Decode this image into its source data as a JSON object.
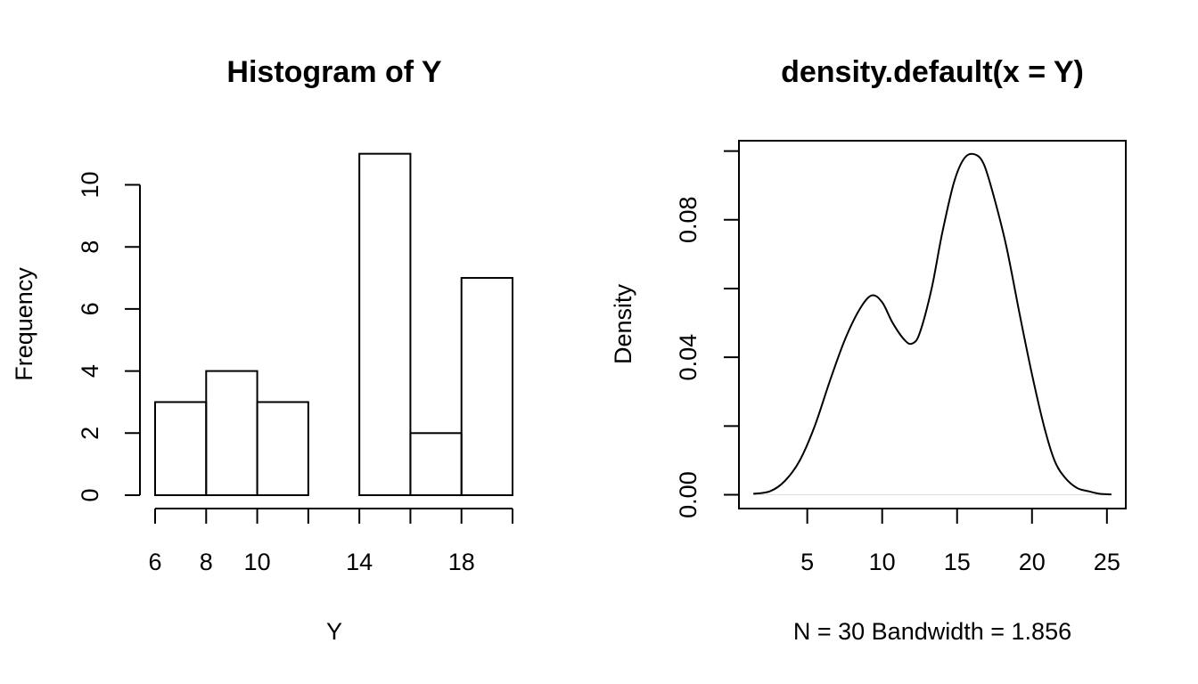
{
  "chart_data": [
    {
      "type": "bar",
      "title": "Histogram of Y",
      "xlabel": "Y",
      "ylabel": "Frequency",
      "bins": [
        [
          6,
          8
        ],
        [
          8,
          10
        ],
        [
          10,
          12
        ],
        [
          12,
          14
        ],
        [
          14,
          16
        ],
        [
          16,
          18
        ],
        [
          18,
          20
        ]
      ],
      "values": [
        3,
        4,
        3,
        0,
        11,
        2,
        7
      ],
      "x_ticks": [
        6,
        8,
        10,
        12,
        14,
        16,
        18,
        20
      ],
      "x_tick_labels": [
        "6",
        "8",
        "10",
        "",
        "14",
        "",
        "18",
        ""
      ],
      "y_ticks": [
        0,
        2,
        4,
        6,
        8,
        10
      ],
      "y_tick_labels": [
        "0",
        "2",
        "4",
        "6",
        "8",
        "10"
      ],
      "xlim": [
        6,
        20
      ],
      "ylim": [
        0,
        11
      ],
      "grid": false
    },
    {
      "type": "line",
      "title": "density.default(x = Y)",
      "xlabel": "N = 30   Bandwidth = 1.856",
      "ylabel": "Density",
      "x": [
        1.4,
        2.5,
        3.5,
        4.5,
        5.5,
        6.5,
        7.5,
        8.5,
        9.3,
        10.0,
        10.7,
        11.5,
        12.0,
        12.5,
        13.3,
        14.0,
        14.8,
        15.5,
        16.2,
        16.8,
        17.5,
        18.3,
        19.2,
        20.0,
        20.8,
        21.5,
        22.2,
        23.0,
        23.8,
        24.5,
        25.3
      ],
      "y": [
        0.0003,
        0.001,
        0.004,
        0.01,
        0.02,
        0.033,
        0.045,
        0.054,
        0.058,
        0.056,
        0.05,
        0.045,
        0.044,
        0.047,
        0.06,
        0.076,
        0.091,
        0.098,
        0.099,
        0.096,
        0.086,
        0.072,
        0.052,
        0.035,
        0.02,
        0.01,
        0.005,
        0.002,
        0.001,
        0.0003,
        0.0001
      ],
      "x_ticks": [
        5,
        10,
        15,
        20,
        25
      ],
      "x_tick_labels": [
        "5",
        "10",
        "15",
        "20",
        "25"
      ],
      "y_ticks": [
        0,
        0.02,
        0.04,
        0.06,
        0.08,
        0.1
      ],
      "y_tick_labels": [
        "0.00",
        "",
        "0.04",
        "",
        "0.08",
        ""
      ],
      "xlim": [
        0.44,
        26.26
      ],
      "ylim": [
        -0.004,
        0.103
      ],
      "grid": false,
      "box": true
    }
  ]
}
